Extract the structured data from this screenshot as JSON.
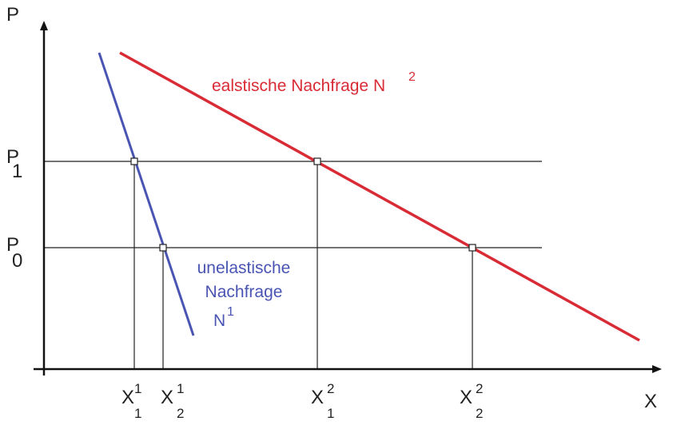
{
  "axes": {
    "y_label": "P",
    "x_label": "X"
  },
  "price_levels": {
    "p1": {
      "main": "P",
      "sub": "1"
    },
    "p0": {
      "main": "P",
      "sub": "0"
    }
  },
  "quantity_ticks": [
    {
      "main": "X",
      "sup": "1",
      "sub": "1"
    },
    {
      "main": "X",
      "sup": "1",
      "sub": "2"
    },
    {
      "main": "X",
      "sup": "2",
      "sub": "1"
    },
    {
      "main": "X",
      "sup": "2",
      "sub": "2"
    }
  ],
  "curves": {
    "elastic": {
      "label": "ealstische Nachfrage N",
      "sup": "2",
      "color": "#d92b35"
    },
    "inelastic": {
      "label_line1": "unelastische",
      "label_line2": "Nachfrage",
      "label_line3": "N",
      "sup": "1",
      "color": "#4a55b3"
    }
  },
  "colors": {
    "axis": "#111111",
    "guide": "#222222",
    "marker_fill": "#ffffff"
  }
}
